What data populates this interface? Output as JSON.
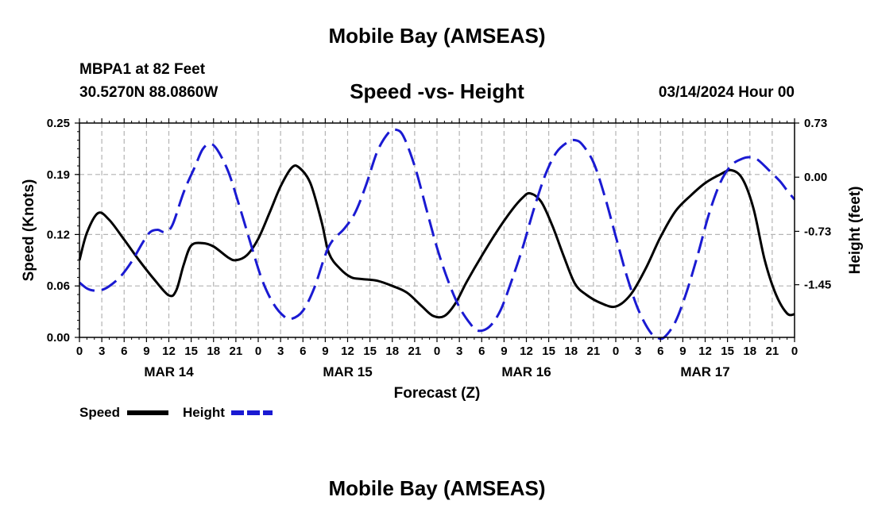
{
  "header": {
    "title": "Mobile Bay (AMSEAS)",
    "station": "MBPA1 at 82 Feet",
    "coords": "30.5270N  88.0860W",
    "subtitle": "Speed -vs- Height",
    "run_time": "03/14/2024 Hour 00"
  },
  "footer": {
    "title": "Mobile Bay (AMSEAS)"
  },
  "chart_data": {
    "type": "line",
    "title": "Speed -vs- Height",
    "xlabel": "Forecast (Z)",
    "ylabel": "Speed (Knots)",
    "y2label": "Height (feet)",
    "xlim": [
      0,
      96
    ],
    "ylim": [
      0,
      0.25
    ],
    "y2lim": [
      -2.16,
      0.73
    ],
    "x_tick_step_hours": 3,
    "x_tick_labels": [
      "0",
      "3",
      "6",
      "9",
      "12",
      "15",
      "18",
      "21",
      "0",
      "3",
      "6",
      "9",
      "12",
      "15",
      "18",
      "21",
      "0",
      "3",
      "6",
      "9",
      "12",
      "15",
      "18",
      "21",
      "0",
      "3",
      "6",
      "9",
      "12",
      "15",
      "18",
      "21",
      "0"
    ],
    "day_labels": [
      {
        "hour": 12,
        "label": "MAR 14"
      },
      {
        "hour": 36,
        "label": "MAR 15"
      },
      {
        "hour": 60,
        "label": "MAR 16"
      },
      {
        "hour": 84,
        "label": "MAR 17"
      }
    ],
    "y_ticks": [
      0,
      0.06,
      0.12,
      0.19,
      0.25
    ],
    "y_tick_labels": [
      "0.00",
      "0.06",
      "0.12",
      "0.19",
      "0.25"
    ],
    "y2_ticks": [
      0.73,
      0.0,
      -0.73,
      -1.45
    ],
    "y2_tick_labels": [
      "0.73",
      "0.00",
      "-0.73",
      "-1.45"
    ],
    "grid": true,
    "series": [
      {
        "name": "Speed",
        "axis": "left",
        "color": "#000000",
        "dash": "solid",
        "points": [
          [
            0,
            0.09
          ],
          [
            1,
            0.122
          ],
          [
            2.5,
            0.145
          ],
          [
            4,
            0.137
          ],
          [
            6,
            0.114
          ],
          [
            8,
            0.09
          ],
          [
            10,
            0.068
          ],
          [
            12,
            0.049
          ],
          [
            13,
            0.055
          ],
          [
            14,
            0.085
          ],
          [
            15,
            0.107
          ],
          [
            16.5,
            0.11
          ],
          [
            18,
            0.106
          ],
          [
            20,
            0.093
          ],
          [
            21,
            0.09
          ],
          [
            22.5,
            0.096
          ],
          [
            24,
            0.115
          ],
          [
            25.5,
            0.145
          ],
          [
            27,
            0.176
          ],
          [
            28.5,
            0.198
          ],
          [
            29.5,
            0.198
          ],
          [
            31,
            0.18
          ],
          [
            32.5,
            0.135
          ],
          [
            33.5,
            0.098
          ],
          [
            35,
            0.08
          ],
          [
            36.5,
            0.07
          ],
          [
            38,
            0.068
          ],
          [
            40,
            0.066
          ],
          [
            42,
            0.06
          ],
          [
            44,
            0.052
          ],
          [
            46,
            0.036
          ],
          [
            47.5,
            0.025
          ],
          [
            49,
            0.025
          ],
          [
            50.5,
            0.04
          ],
          [
            52,
            0.065
          ],
          [
            54,
            0.095
          ],
          [
            56,
            0.123
          ],
          [
            58,
            0.148
          ],
          [
            59.5,
            0.163
          ],
          [
            60.5,
            0.168
          ],
          [
            62,
            0.158
          ],
          [
            63.5,
            0.13
          ],
          [
            65,
            0.095
          ],
          [
            66.5,
            0.063
          ],
          [
            68,
            0.05
          ],
          [
            70,
            0.04
          ],
          [
            72,
            0.036
          ],
          [
            74,
            0.05
          ],
          [
            76,
            0.08
          ],
          [
            78,
            0.117
          ],
          [
            80,
            0.147
          ],
          [
            82,
            0.165
          ],
          [
            84,
            0.18
          ],
          [
            86,
            0.19
          ],
          [
            87.5,
            0.195
          ],
          [
            89,
            0.185
          ],
          [
            90.5,
            0.15
          ],
          [
            92,
            0.09
          ],
          [
            93.5,
            0.05
          ],
          [
            95,
            0.028
          ],
          [
            96,
            0.027
          ]
        ]
      },
      {
        "name": "Height",
        "axis": "right",
        "color": "#1a1ad2",
        "dash": "dashed",
        "points": [
          [
            0,
            -1.42
          ],
          [
            1,
            -1.5
          ],
          [
            2,
            -1.53
          ],
          [
            3,
            -1.52
          ],
          [
            4,
            -1.47
          ],
          [
            5.5,
            -1.34
          ],
          [
            7,
            -1.14
          ],
          [
            8.5,
            -0.88
          ],
          [
            9.5,
            -0.74
          ],
          [
            10.5,
            -0.71
          ],
          [
            11.5,
            -0.74
          ],
          [
            12.5,
            -0.64
          ],
          [
            14,
            -0.2
          ],
          [
            15.5,
            0.14
          ],
          [
            16.5,
            0.37
          ],
          [
            17.5,
            0.45
          ],
          [
            18.5,
            0.37
          ],
          [
            20,
            0.07
          ],
          [
            21.5,
            -0.4
          ],
          [
            23,
            -0.9
          ],
          [
            24.5,
            -1.38
          ],
          [
            26,
            -1.7
          ],
          [
            27.5,
            -1.88
          ],
          [
            28.5,
            -1.91
          ],
          [
            30,
            -1.8
          ],
          [
            31.5,
            -1.5
          ],
          [
            33,
            -1.05
          ],
          [
            34,
            -0.85
          ],
          [
            35.5,
            -0.7
          ],
          [
            37,
            -0.48
          ],
          [
            38.5,
            -0.1
          ],
          [
            40,
            0.35
          ],
          [
            41.5,
            0.6
          ],
          [
            42.5,
            0.64
          ],
          [
            43.5,
            0.55
          ],
          [
            45,
            0.15
          ],
          [
            46.5,
            -0.4
          ],
          [
            48,
            -0.95
          ],
          [
            49.5,
            -1.4
          ],
          [
            51,
            -1.75
          ],
          [
            52.5,
            -1.98
          ],
          [
            53.5,
            -2.07
          ],
          [
            55,
            -2.02
          ],
          [
            56.5,
            -1.8
          ],
          [
            58,
            -1.4
          ],
          [
            59.5,
            -0.95
          ],
          [
            61,
            -0.43
          ],
          [
            62.5,
            0.02
          ],
          [
            64,
            0.33
          ],
          [
            65.5,
            0.47
          ],
          [
            66.5,
            0.5
          ],
          [
            67.5,
            0.44
          ],
          [
            69,
            0.2
          ],
          [
            70.5,
            -0.25
          ],
          [
            72,
            -0.8
          ],
          [
            73.5,
            -1.34
          ],
          [
            75,
            -1.78
          ],
          [
            76.5,
            -2.07
          ],
          [
            77.5,
            -2.2
          ],
          [
            78.5,
            -2.18
          ],
          [
            80,
            -1.95
          ],
          [
            81.5,
            -1.55
          ],
          [
            83,
            -1.05
          ],
          [
            84.5,
            -0.5
          ],
          [
            86,
            -0.08
          ],
          [
            87.5,
            0.16
          ],
          [
            89,
            0.25
          ],
          [
            90,
            0.27
          ],
          [
            91,
            0.24
          ],
          [
            92.5,
            0.1
          ],
          [
            94,
            -0.05
          ],
          [
            95,
            -0.18
          ],
          [
            96,
            -0.3
          ]
        ]
      }
    ],
    "legend": {
      "placement": "bottom-left",
      "items": [
        {
          "label": "Speed",
          "color": "#000000",
          "dash": "solid"
        },
        {
          "label": "Height",
          "color": "#1a1ad2",
          "dash": "dashed"
        }
      ]
    }
  }
}
